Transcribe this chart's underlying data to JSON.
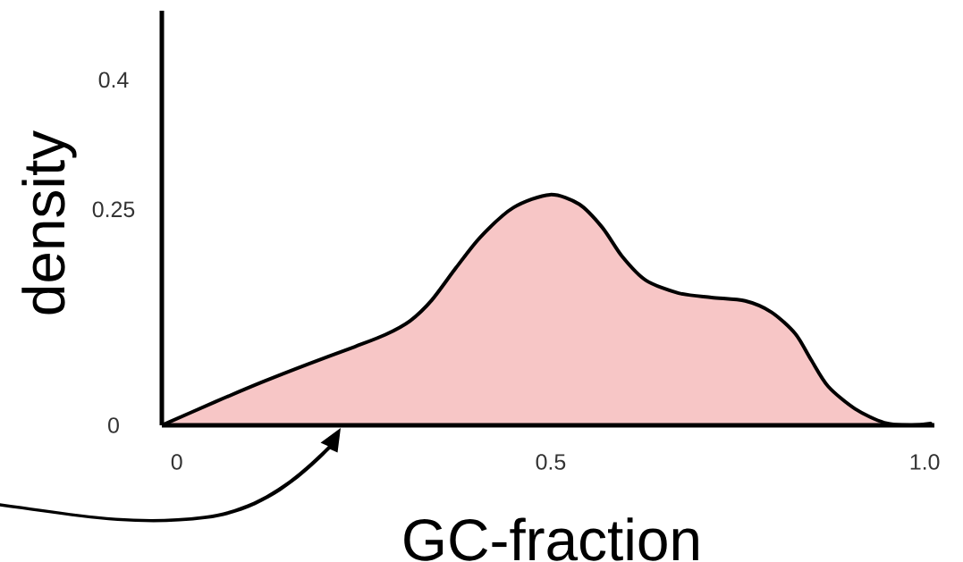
{
  "chart_data": {
    "type": "area",
    "xlabel": "GC-fraction",
    "ylabel": "density",
    "x": [
      -0.02,
      0.051,
      0.114,
      0.176,
      0.238,
      0.279,
      0.312,
      0.341,
      0.373,
      0.406,
      0.45,
      0.499,
      0.538,
      0.569,
      0.596,
      0.627,
      0.671,
      0.715,
      0.76,
      0.795,
      0.827,
      0.848,
      0.871,
      0.907,
      0.946,
      0.982,
      1.008
    ],
    "values": [
      0,
      0.027,
      0.05,
      0.071,
      0.091,
      0.105,
      0.121,
      0.145,
      0.182,
      0.218,
      0.252,
      0.267,
      0.256,
      0.229,
      0.195,
      0.168,
      0.153,
      0.148,
      0.144,
      0.131,
      0.106,
      0.076,
      0.045,
      0.019,
      0.003,
      0,
      0.002
    ],
    "color": "#f7c6c6",
    "xlim": [
      -0.02,
      1.013
    ],
    "ylim": [
      0,
      0.48
    ],
    "xticks": [
      0,
      0.5,
      {
        "value": 1,
        "label": "1.0"
      }
    ],
    "yticks": [
      0,
      0.25,
      0.4
    ]
  }
}
